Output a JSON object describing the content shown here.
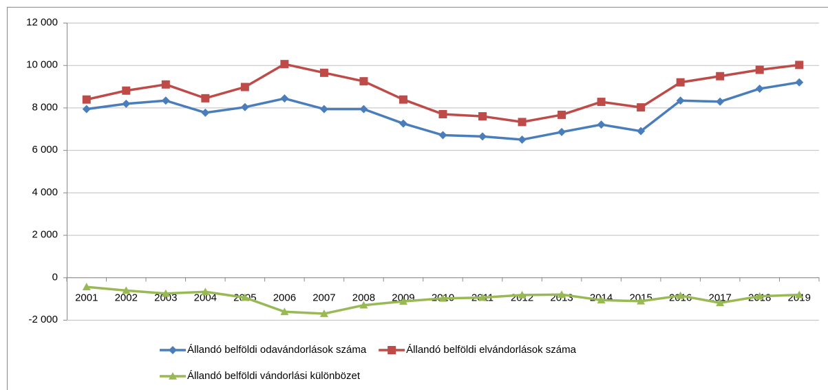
{
  "chart_data": {
    "type": "line",
    "categories": [
      "2001",
      "2002",
      "2003",
      "2004",
      "2005",
      "2006",
      "2007",
      "2008",
      "2009",
      "2010",
      "2011",
      "2012",
      "2013",
      "2014",
      "2015",
      "2016",
      "2017",
      "2018",
      "2019"
    ],
    "series": [
      {
        "name": "Állandó belföldi odavándorlások száma",
        "color": "#4a7ebb",
        "marker": "diamond",
        "values": [
          7930,
          8180,
          8330,
          7760,
          8020,
          8430,
          7930,
          7930,
          7250,
          6700,
          6640,
          6490,
          6850,
          7200,
          6890,
          8330,
          8280,
          8890,
          9190
        ]
      },
      {
        "name": "Állandó belföldi elvándorlások száma",
        "color": "#be4b48",
        "marker": "square",
        "values": [
          8380,
          8800,
          9090,
          8440,
          8970,
          10050,
          9640,
          9240,
          8380,
          7690,
          7590,
          7320,
          7660,
          8270,
          8010,
          9190,
          9480,
          9780,
          10010
        ]
      },
      {
        "name": "Állandó belföldi vándorlási különbözet",
        "color": "#98b954",
        "marker": "triangle",
        "values": [
          -450,
          -620,
          -760,
          -680,
          -950,
          -1620,
          -1710,
          -1310,
          -1130,
          -990,
          -950,
          -830,
          -810,
          -1070,
          -1120,
          -860,
          -1200,
          -890,
          -820
        ]
      }
    ],
    "ylim": [
      -2000,
      12000
    ],
    "yticks": [
      {
        "value": -2000,
        "label": "-2 000"
      },
      0,
      {
        "value": 2000,
        "label": "2 000"
      },
      {
        "value": 4000,
        "label": "4 000"
      },
      {
        "value": 6000,
        "label": "6 000"
      },
      {
        "value": 8000,
        "label": "8 000"
      },
      {
        "value": 10000,
        "label": "10 000"
      },
      {
        "value": 12000,
        "label": "12 000"
      }
    ],
    "grid": true
  }
}
